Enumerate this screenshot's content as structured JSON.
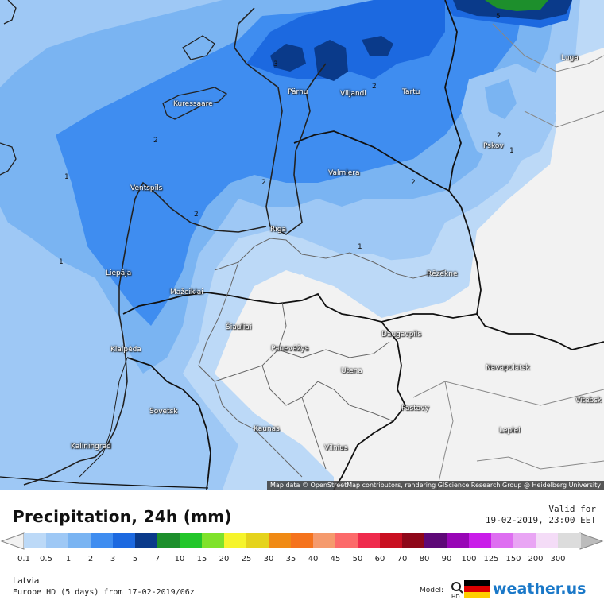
{
  "map": {
    "attribution": "Map data © OpenStreetMap contributors, rendering GIScience Research Group @ Heidelberg University",
    "cities": [
      {
        "name": "Luga",
        "label": "Luga"
      },
      {
        "name": "Kuressaare",
        "label": "Kuressaare"
      },
      {
        "name": "Pärnu",
        "label": "Pärnu"
      },
      {
        "name": "Viljandi",
        "label": "Viljandi"
      },
      {
        "name": "Tartu",
        "label": "Tartu"
      },
      {
        "name": "Pskov",
        "label": "Pskov"
      },
      {
        "name": "Valmiera",
        "label": "Valmiera"
      },
      {
        "name": "Ventspils",
        "label": "Ventspils"
      },
      {
        "name": "Riga",
        "label": "Riga"
      },
      {
        "name": "Liepāja",
        "label": "Liepāja"
      },
      {
        "name": "Rēzekne",
        "label": "Rēzekne"
      },
      {
        "name": "Mažeikiai",
        "label": "Mažeikiai"
      },
      {
        "name": "Šiauliai",
        "label": "Šiauliai"
      },
      {
        "name": "Panevėžys",
        "label": "Panevėžys"
      },
      {
        "name": "Klaipėda",
        "label": "Klaipėda"
      },
      {
        "name": "Daugavpils",
        "label": "Daugavpils"
      },
      {
        "name": "Navapolatsk",
        "label": "Navapolatsk"
      },
      {
        "name": "Utena",
        "label": "Utena"
      },
      {
        "name": "Vitebsk",
        "label": "Vitebsk"
      },
      {
        "name": "Sovetsk",
        "label": "Sovetsk"
      },
      {
        "name": "Pastavy",
        "label": "Pastavy"
      },
      {
        "name": "Kaunas",
        "label": "Kaunas"
      },
      {
        "name": "Lepiel",
        "label": "Lepiel"
      },
      {
        "name": "Kaliningrad",
        "label": "Kaliningrad"
      },
      {
        "name": "Vilnius",
        "label": "Vilnius"
      }
    ],
    "contour_labels": [
      "1",
      "2",
      "3",
      "5"
    ]
  },
  "legend": {
    "title": "Precipitation, 24h (mm)",
    "valid_for": "Valid for",
    "valid_time": "19-02-2019, 23:00 EET",
    "scale_values": [
      "0.1",
      "0.5",
      "1",
      "2",
      "3",
      "5",
      "7",
      "10",
      "15",
      "20",
      "25",
      "30",
      "35",
      "40",
      "45",
      "50",
      "60",
      "70",
      "80",
      "90",
      "100",
      "125",
      "150",
      "200",
      "300"
    ],
    "scale_colors": [
      "#bcd9f7",
      "#9ec8f5",
      "#7ab4f2",
      "#3f8df0",
      "#1c69e0",
      "#0a3a8a",
      "#1d8f2c",
      "#23c62a",
      "#7fe22a",
      "#f6f42b",
      "#e5d31c",
      "#f08a14",
      "#f5731d",
      "#f59a6d",
      "#fc6a6a",
      "#ef2a4c",
      "#c90f21",
      "#8e0719",
      "#5e0877",
      "#9806b6",
      "#c91de9",
      "#de6ef1",
      "#e9a5f4",
      "#f4dcf7",
      "#dcdcdc"
    ],
    "region": "Latvia",
    "model_run": "Europe HD (5 days) from 17-02-2019/06z",
    "model_label": "Model:",
    "brand": "weather.us"
  }
}
